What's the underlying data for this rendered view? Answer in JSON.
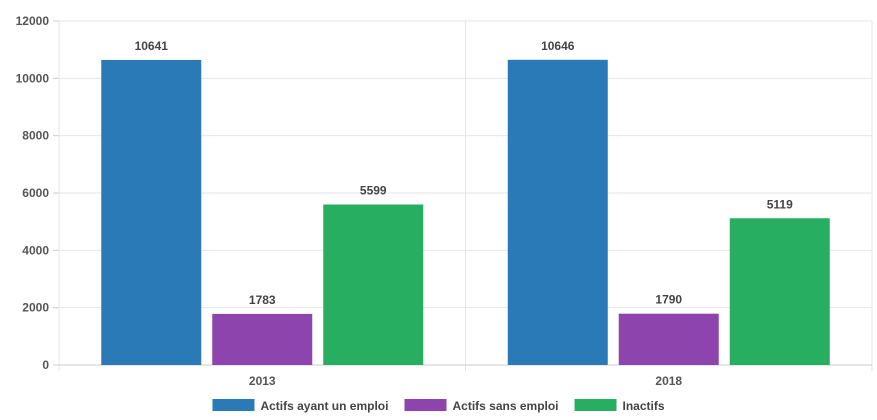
{
  "chart_data": {
    "type": "bar",
    "categories": [
      "2013",
      "2018"
    ],
    "series": [
      {
        "name": "Actifs ayant un emploi",
        "color": "#2a7ab8",
        "values": [
          10641,
          10646
        ]
      },
      {
        "name": "Actifs sans emploi",
        "color": "#8e44ad",
        "values": [
          1783,
          1790
        ]
      },
      {
        "name": "Inactifs",
        "color": "#27ae60",
        "values": [
          5599,
          5119
        ]
      }
    ],
    "yticks": [
      0,
      2000,
      4000,
      6000,
      8000,
      10000,
      12000
    ],
    "ylim": [
      0,
      12000
    ],
    "grid": true,
    "legend": "bottom-center",
    "data_labels": true
  }
}
